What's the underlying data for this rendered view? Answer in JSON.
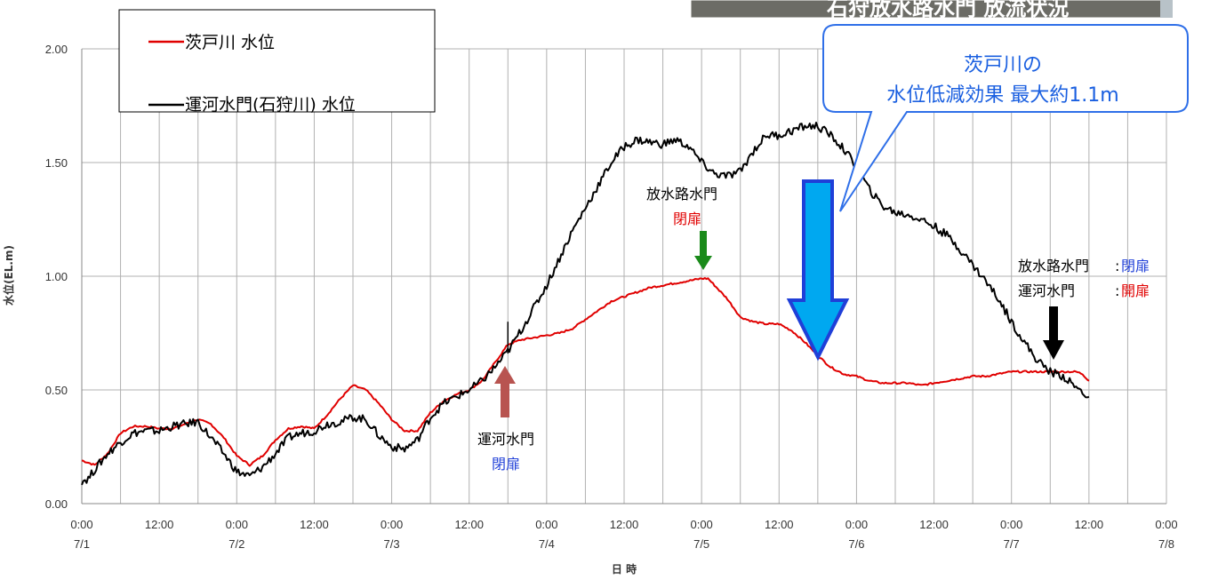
{
  "photo": {
    "caption": "石狩放水路水門 放流状況"
  },
  "callout": {
    "line1": "茨戸川の",
    "line2": "水位低減効果 最大約1.1m"
  },
  "annotations": {
    "canal_close": {
      "label": "運河水門",
      "state": "閉扉"
    },
    "outlet_close": {
      "label": "放水路水門",
      "state": "閉扉"
    },
    "final_outlet": {
      "label": "放水路水門",
      "colon": ":",
      "state": "閉扉"
    },
    "final_canal": {
      "label": "運河水門",
      "colon": ":",
      "state": "開扉"
    }
  },
  "colors": {
    "barato": "#e00000",
    "canal": "#000000",
    "blue_text": "#1f3fd8",
    "red_text": "#e00000",
    "green_arrow": "#1a8a1a",
    "brown_arrow": "#b85450",
    "big_arrow": "#00a8f0",
    "callout_border": "#2f6fe8"
  },
  "chart_data": {
    "type": "line",
    "xlabel": "日 時",
    "ylabel": "水位(EL.m)",
    "ylim": [
      0,
      2
    ],
    "xlim": [
      0,
      168
    ],
    "x_unit": "hours since 7/1 0:00",
    "yticks": [
      "0.00",
      "0.50",
      "1.00",
      "1.50",
      "2.00"
    ],
    "xticks": [
      {
        "time": "0:00",
        "date": "7/1"
      },
      {
        "time": "12:00",
        "date": ""
      },
      {
        "time": "0:00",
        "date": "7/2"
      },
      {
        "time": "12:00",
        "date": ""
      },
      {
        "time": "0:00",
        "date": "7/3"
      },
      {
        "time": "12:00",
        "date": ""
      },
      {
        "time": "0:00",
        "date": "7/4"
      },
      {
        "time": "12:00",
        "date": ""
      },
      {
        "time": "0:00",
        "date": "7/5"
      },
      {
        "time": "12:00",
        "date": ""
      },
      {
        "time": "0:00",
        "date": "7/6"
      },
      {
        "time": "12:00",
        "date": ""
      },
      {
        "time": "0:00",
        "date": "7/7"
      },
      {
        "time": "12:00",
        "date": ""
      },
      {
        "time": "0:00",
        "date": "7/8"
      }
    ],
    "grid": true,
    "legend_position": "top-left",
    "series": [
      {
        "name": "茨戸川 水位",
        "color": "#e00000",
        "points": [
          [
            0,
            0.19
          ],
          [
            2,
            0.17
          ],
          [
            4,
            0.22
          ],
          [
            6,
            0.31
          ],
          [
            8,
            0.34
          ],
          [
            10,
            0.34
          ],
          [
            12,
            0.33
          ],
          [
            14,
            0.33
          ],
          [
            16,
            0.35
          ],
          [
            18,
            0.37
          ],
          [
            20,
            0.35
          ],
          [
            22,
            0.29
          ],
          [
            24,
            0.21
          ],
          [
            26,
            0.17
          ],
          [
            28,
            0.21
          ],
          [
            30,
            0.28
          ],
          [
            32,
            0.33
          ],
          [
            34,
            0.34
          ],
          [
            36,
            0.33
          ],
          [
            38,
            0.39
          ],
          [
            40,
            0.46
          ],
          [
            42,
            0.52
          ],
          [
            44,
            0.5
          ],
          [
            46,
            0.44
          ],
          [
            48,
            0.37
          ],
          [
            50,
            0.32
          ],
          [
            52,
            0.32
          ],
          [
            54,
            0.4
          ],
          [
            56,
            0.45
          ],
          [
            58,
            0.48
          ],
          [
            60,
            0.5
          ],
          [
            62,
            0.54
          ],
          [
            64,
            0.62
          ],
          [
            66,
            0.7
          ],
          [
            68,
            0.72
          ],
          [
            70,
            0.73
          ],
          [
            72,
            0.74
          ],
          [
            74,
            0.75
          ],
          [
            76,
            0.77
          ],
          [
            78,
            0.81
          ],
          [
            80,
            0.85
          ],
          [
            82,
            0.89
          ],
          [
            84,
            0.91
          ],
          [
            86,
            0.93
          ],
          [
            88,
            0.95
          ],
          [
            90,
            0.96
          ],
          [
            92,
            0.97
          ],
          [
            94,
            0.98
          ],
          [
            96,
            0.99
          ],
          [
            97,
            0.99
          ],
          [
            98,
            0.96
          ],
          [
            100,
            0.9
          ],
          [
            102,
            0.82
          ],
          [
            104,
            0.8
          ],
          [
            106,
            0.79
          ],
          [
            108,
            0.79
          ],
          [
            110,
            0.76
          ],
          [
            112,
            0.71
          ],
          [
            114,
            0.65
          ],
          [
            116,
            0.6
          ],
          [
            118,
            0.57
          ],
          [
            120,
            0.56
          ],
          [
            122,
            0.54
          ],
          [
            124,
            0.53
          ],
          [
            126,
            0.53
          ],
          [
            128,
            0.53
          ],
          [
            130,
            0.52
          ],
          [
            132,
            0.53
          ],
          [
            134,
            0.54
          ],
          [
            136,
            0.55
          ],
          [
            138,
            0.56
          ],
          [
            140,
            0.56
          ],
          [
            142,
            0.57
          ],
          [
            144,
            0.58
          ],
          [
            148,
            0.58
          ],
          [
            152,
            0.58
          ],
          [
            154,
            0.58
          ],
          [
            155,
            0.57
          ],
          [
            156,
            0.54
          ]
        ]
      },
      {
        "name": "運河水門(石狩川) 水位",
        "color": "#000000",
        "points": [
          [
            0,
            0.1
          ],
          [
            1,
            0.11
          ],
          [
            2,
            0.15
          ],
          [
            4,
            0.22
          ],
          [
            6,
            0.27
          ],
          [
            8,
            0.31
          ],
          [
            10,
            0.32
          ],
          [
            12,
            0.32
          ],
          [
            14,
            0.34
          ],
          [
            16,
            0.35
          ],
          [
            18,
            0.36
          ],
          [
            20,
            0.29
          ],
          [
            22,
            0.22
          ],
          [
            24,
            0.14
          ],
          [
            26,
            0.12
          ],
          [
            28,
            0.16
          ],
          [
            30,
            0.22
          ],
          [
            32,
            0.29
          ],
          [
            34,
            0.31
          ],
          [
            36,
            0.32
          ],
          [
            38,
            0.35
          ],
          [
            40,
            0.36
          ],
          [
            42,
            0.38
          ],
          [
            44,
            0.37
          ],
          [
            46,
            0.3
          ],
          [
            48,
            0.25
          ],
          [
            50,
            0.24
          ],
          [
            52,
            0.28
          ],
          [
            54,
            0.38
          ],
          [
            56,
            0.44
          ],
          [
            58,
            0.47
          ],
          [
            60,
            0.5
          ],
          [
            62,
            0.54
          ],
          [
            64,
            0.6
          ],
          [
            66,
            0.67
          ],
          [
            68,
            0.76
          ],
          [
            70,
            0.86
          ],
          [
            72,
            0.96
          ],
          [
            74,
            1.08
          ],
          [
            76,
            1.2
          ],
          [
            78,
            1.3
          ],
          [
            80,
            1.4
          ],
          [
            82,
            1.5
          ],
          [
            84,
            1.57
          ],
          [
            86,
            1.6
          ],
          [
            88,
            1.59
          ],
          [
            90,
            1.58
          ],
          [
            92,
            1.6
          ],
          [
            94,
            1.57
          ],
          [
            96,
            1.5
          ],
          [
            98,
            1.45
          ],
          [
            100,
            1.44
          ],
          [
            102,
            1.46
          ],
          [
            104,
            1.55
          ],
          [
            106,
            1.62
          ],
          [
            108,
            1.62
          ],
          [
            110,
            1.64
          ],
          [
            112,
            1.66
          ],
          [
            114,
            1.66
          ],
          [
            116,
            1.62
          ],
          [
            118,
            1.56
          ],
          [
            120,
            1.48
          ],
          [
            122,
            1.38
          ],
          [
            124,
            1.31
          ],
          [
            126,
            1.28
          ],
          [
            128,
            1.27
          ],
          [
            130,
            1.25
          ],
          [
            132,
            1.22
          ],
          [
            134,
            1.18
          ],
          [
            136,
            1.12
          ],
          [
            138,
            1.05
          ],
          [
            140,
            0.98
          ],
          [
            142,
            0.9
          ],
          [
            144,
            0.8
          ],
          [
            146,
            0.71
          ],
          [
            148,
            0.63
          ],
          [
            150,
            0.58
          ],
          [
            152,
            0.56
          ],
          [
            154,
            0.51
          ],
          [
            156,
            0.47
          ]
        ]
      }
    ],
    "markers": [
      {
        "x": 66,
        "note": "運河水門 閉扉"
      },
      {
        "x": 96.5,
        "note": "放水路水門 閉扉"
      },
      {
        "x": 150,
        "note": "放水路水門:閉扉 / 運河水門 :開扉"
      }
    ]
  }
}
